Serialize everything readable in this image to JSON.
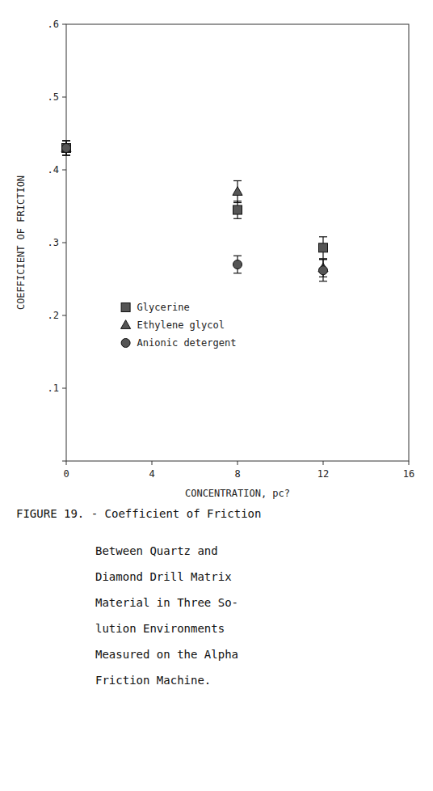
{
  "chart_data": {
    "type": "scatter",
    "x": [
      0,
      8,
      12
    ],
    "series": [
      {
        "name": "Glycerine",
        "values": [
          0.43,
          0.345,
          0.293
        ],
        "yerr": [
          0.01,
          0.012,
          0.015
        ],
        "marker": "square",
        "color": "#555555"
      },
      {
        "name": "Ethylene glycol",
        "values": [
          0.43,
          0.37,
          0.265
        ],
        "yerr": [
          0.01,
          0.015,
          0.012
        ],
        "marker": "triangle",
        "color": "#555555"
      },
      {
        "name": "Anionic detergent",
        "values": [
          0.43,
          0.27,
          0.262
        ],
        "yerr": [
          0.01,
          0.012,
          0.015
        ],
        "marker": "circle",
        "color": "#555555"
      }
    ],
    "xlim": [
      0,
      16
    ],
    "ylim": [
      0.0,
      0.6
    ],
    "xticks": [
      0,
      4,
      8,
      12,
      16
    ],
    "yticks": [
      {
        "value": 0.0,
        "label": ""
      },
      {
        "value": 0.1,
        "label": ".1"
      },
      {
        "value": 0.2,
        "label": ".2"
      },
      {
        "value": 0.3,
        "label": ".3"
      },
      {
        "value": 0.4,
        "label": ".4"
      },
      {
        "value": 0.5,
        "label": ".5"
      },
      {
        "value": 0.6,
        "label": ".6"
      }
    ],
    "x_label": "CONCENTRATION, pc?",
    "y_label": "COEFFICIENT OF FRICTION",
    "annotations": [
      "FIGURE 19. - Coefficient of Friction",
      "Between  Quartz  and",
      "Diamond  Drill  Matrix",
      "Material in Three So-",
      "lution    Environments",
      "Measured on the Alpha",
      "Friction Machine."
    ],
    "legend": "lower left",
    "grid": false
  }
}
